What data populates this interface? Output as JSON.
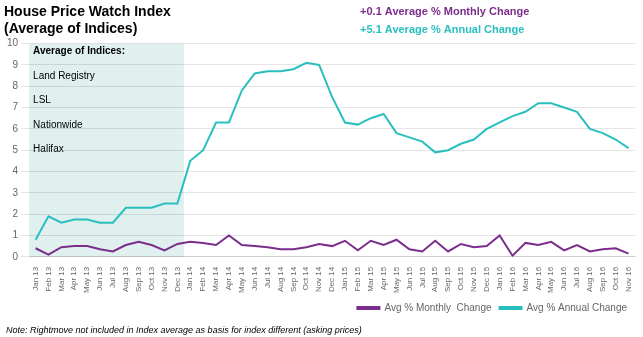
{
  "chart_data": {
    "type": "line",
    "title": "House Price Watch Index\n(Average of Indices)",
    "annotations": [
      {
        "text": "+0.1 Average % Monthly Change",
        "color": "#7B2D8B"
      },
      {
        "text": "+5.1 Average % Annual Change",
        "color": "#2ABFBF"
      }
    ],
    "text_box": [
      "Average of Indices:",
      "Land Registry",
      "LSL",
      "Nationwide",
      "Halifax"
    ],
    "note": "Note: Rightmove not included in Index average as basis for index different (asking prices)",
    "highlight": {
      "from": "Jan 13",
      "to": "Dec 13",
      "color": "#DFF0EF"
    },
    "categories": [
      "Jan 13",
      "Feb 13",
      "Mar 13",
      "Apr 13",
      "May 13",
      "Jun 13",
      "Jul 13",
      "Aug 13",
      "Sep 13",
      "Oct 13",
      "Nov 13",
      "Dec 13",
      "Jan 14",
      "Feb 14",
      "Mar 14",
      "Apr 14",
      "May 14",
      "Jun 14",
      "Jul 14",
      "Aug 14",
      "Sep 14",
      "Oct 14",
      "Nov 14",
      "Dec 14",
      "Jan 15",
      "Feb 15",
      "Mar 15",
      "Apr 15",
      "May 15",
      "Jun 15",
      "Jul 15",
      "Aug 15",
      "Sep 15",
      "Oct 15",
      "Nov 15",
      "Dec 15",
      "Jan 16",
      "Feb 16",
      "Mar 16",
      "Apr 16",
      "May 16",
      "Jun 16",
      "Jul 16",
      "Aug 16",
      "Sep 16",
      "Oct 16",
      "Nov 16"
    ],
    "series": [
      {
        "name": "Avg % Annual Change",
        "color": "#2ABFBF",
        "values": [
          0.8,
          1.9,
          1.6,
          1.75,
          1.75,
          1.6,
          1.6,
          2.3,
          2.3,
          2.3,
          2.5,
          2.5,
          4.5,
          5.0,
          6.3,
          6.3,
          7.8,
          8.6,
          8.7,
          8.7,
          8.8,
          9.1,
          9.0,
          7.5,
          6.3,
          6.2,
          6.5,
          6.7,
          5.8,
          5.6,
          5.4,
          4.9,
          5.0,
          5.3,
          5.5,
          6.0,
          6.3,
          6.6,
          6.8,
          7.2,
          7.2,
          7.0,
          6.8,
          6.0,
          5.8,
          5.5,
          5.1
        ]
      },
      {
        "name": "Avg % Monthly  Change",
        "color": "#7B2D8B",
        "values": [
          0.4,
          0.1,
          0.45,
          0.5,
          0.5,
          0.35,
          0.25,
          0.55,
          0.7,
          0.55,
          0.3,
          0.6,
          0.7,
          0.65,
          0.55,
          1.0,
          0.55,
          0.5,
          0.45,
          0.35,
          0.35,
          0.45,
          0.6,
          0.5,
          0.75,
          0.3,
          0.75,
          0.55,
          0.8,
          0.35,
          0.25,
          0.75,
          0.25,
          0.6,
          0.45,
          0.5,
          1.0,
          0.05,
          0.65,
          0.55,
          0.7,
          0.3,
          0.55,
          0.25,
          0.35,
          0.4,
          0.15
        ]
      }
    ],
    "ylim": [
      0,
      10
    ],
    "yticks": [
      0,
      1,
      2,
      3,
      4,
      5,
      6,
      7,
      8,
      9,
      10
    ],
    "grid": true,
    "legend": "lower right"
  }
}
